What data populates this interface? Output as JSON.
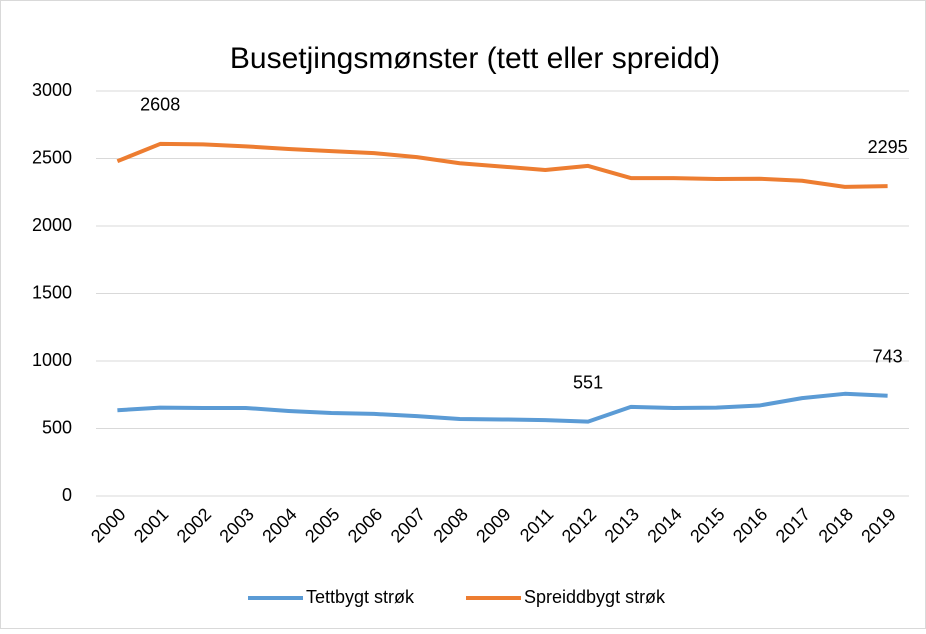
{
  "chart_data": {
    "type": "line",
    "title": "Busetjingsmønster (tett eller spreidd)",
    "categories": [
      "2000",
      "2001",
      "2002",
      "2003",
      "2004",
      "2005",
      "2006",
      "2007",
      "2008",
      "2009",
      "2011",
      "2012",
      "2013",
      "2014",
      "2015",
      "2016",
      "2017",
      "2018",
      "2019"
    ],
    "series": [
      {
        "name": "Tettbygt strøk",
        "color": "#5b9bd5",
        "labeled": [
          11,
          18
        ],
        "values": [
          635,
          655,
          652,
          652,
          630,
          615,
          608,
          592,
          570,
          567,
          562,
          551,
          660,
          652,
          655,
          670,
          725,
          757,
          743
        ]
      },
      {
        "name": "Spreiddbygt strøk",
        "color": "#ed7d31",
        "labeled": [
          1,
          18
        ],
        "values": [
          2480,
          2608,
          2605,
          2590,
          2570,
          2555,
          2540,
          2510,
          2465,
          2440,
          2415,
          2445,
          2355,
          2355,
          2348,
          2350,
          2335,
          2290,
          2295
        ]
      }
    ],
    "ylim": [
      0,
      3000
    ],
    "yticks": [
      0,
      500,
      1000,
      1500,
      2000,
      2500,
      3000
    ],
    "grid": true,
    "legend": "bottom"
  }
}
